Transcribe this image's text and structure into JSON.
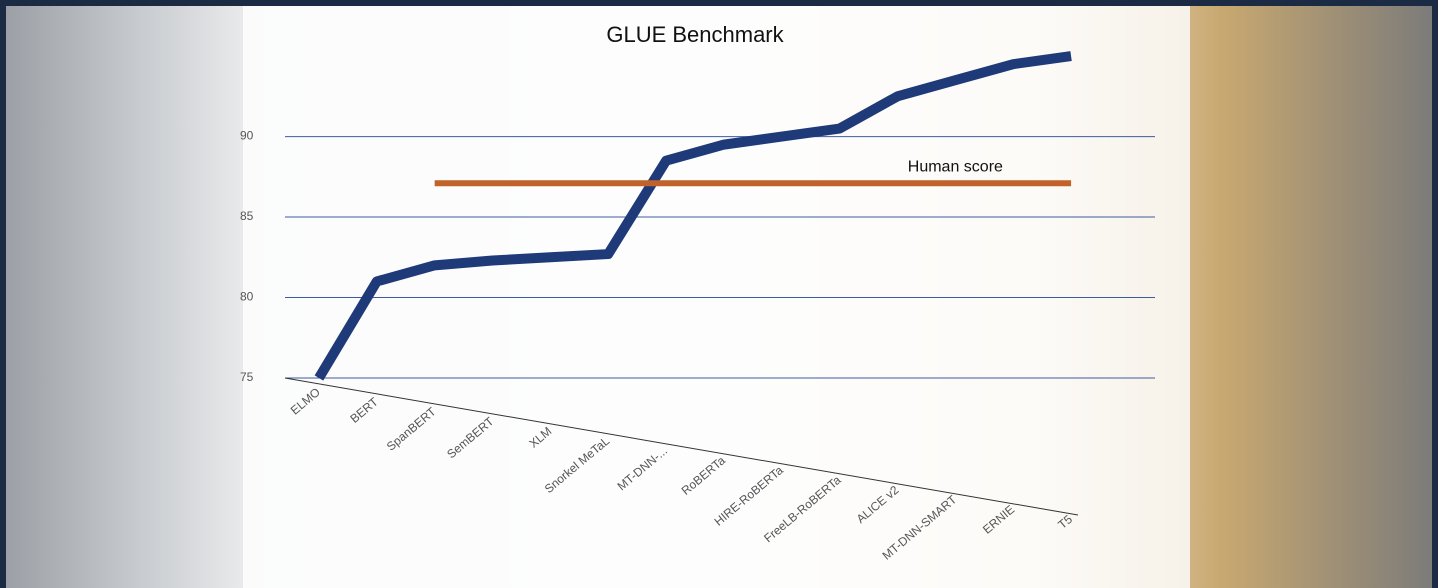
{
  "chart_data": {
    "type": "line",
    "title": "GLUE Benchmark",
    "categories": [
      "ELMO",
      "BERT",
      "SpanBERT",
      "SemBERT",
      "XLM",
      "Snorkel MeTaL",
      "MT-DNN-...",
      "RoBERTa",
      "HIRE-RoBERTa",
      "FreeLB-RoBERTa",
      "ALICE v2",
      "MT-DNN-SMART",
      "ERNIE",
      "T5"
    ],
    "series": [
      {
        "color": "#1f3a78",
        "values": [
          75,
          81,
          82,
          82.3,
          82.5,
          82.7,
          88.5,
          89.5,
          90,
          90.5,
          92.5,
          93.5,
          94.5,
          95
        ]
      },
      {
        "name": "Human score",
        "color": "#c0622a",
        "values": [
          null,
          null,
          87.1,
          87.1,
          87.1,
          87.1,
          87.1,
          87.1,
          87.1,
          87.1,
          87.1,
          87.1,
          87.1,
          87.1
        ]
      }
    ],
    "ylim": [
      75,
      96
    ],
    "yticks": [
      75,
      80,
      85,
      90
    ],
    "grid": true
  }
}
